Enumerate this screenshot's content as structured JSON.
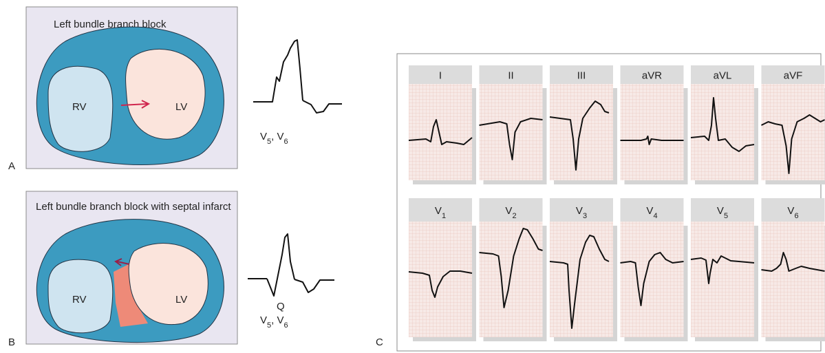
{
  "panel_a": {
    "letter": "A",
    "title": "Left bundle branch block",
    "rv": "RV",
    "lv": "LV",
    "leads": [
      {
        "text": "V",
        "sub": "5"
      },
      {
        "text": "V",
        "sub": "6"
      }
    ],
    "separator": ", "
  },
  "panel_b": {
    "letter": "B",
    "title": "Left bundle branch block with septal infarct",
    "rv": "RV",
    "lv": "LV",
    "q": "Q",
    "leads": [
      {
        "text": "V",
        "sub": "5"
      },
      {
        "text": "V",
        "sub": "6"
      }
    ],
    "separator": ", "
  },
  "panel_c": {
    "letter": "C",
    "leads": [
      {
        "text": "I"
      },
      {
        "text": "II"
      },
      {
        "text": "III"
      },
      {
        "text": "aVR"
      },
      {
        "text": "aVL"
      },
      {
        "text": "aVF"
      },
      {
        "text": "V",
        "sub": "1"
      },
      {
        "text": "V",
        "sub": "2"
      },
      {
        "text": "V",
        "sub": "3"
      },
      {
        "text": "V",
        "sub": "4"
      },
      {
        "text": "V",
        "sub": "5"
      },
      {
        "text": "V",
        "sub": "6"
      }
    ]
  }
}
